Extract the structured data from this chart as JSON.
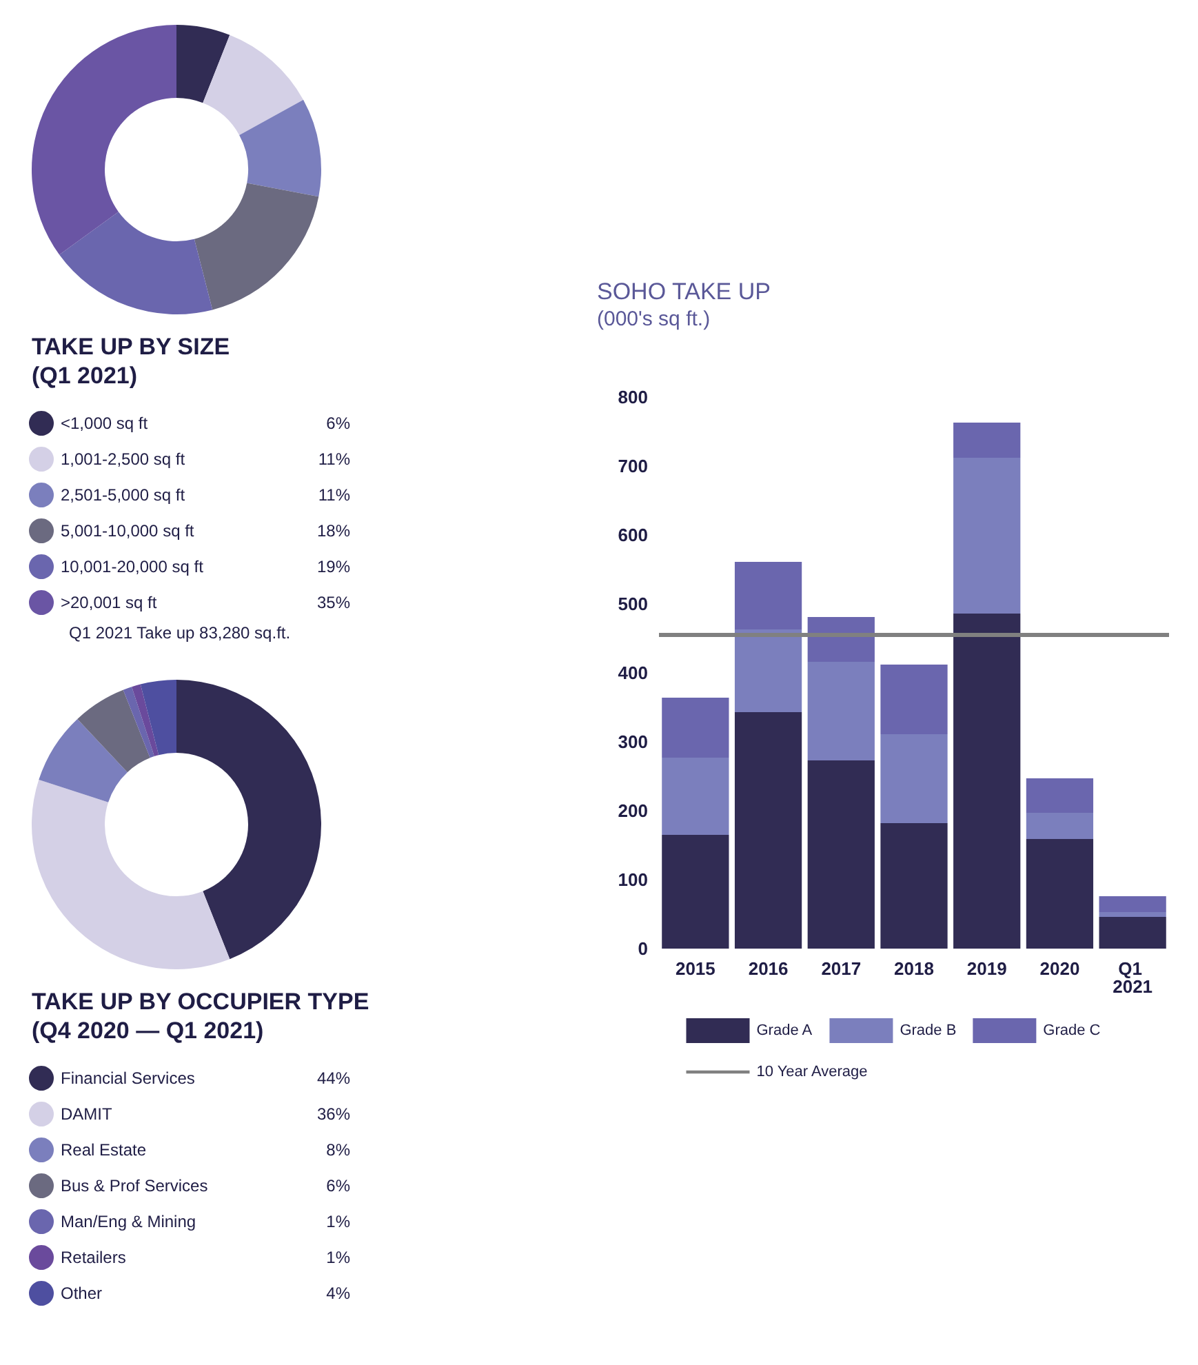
{
  "chart_data": [
    {
      "type": "donut",
      "title": "TAKE UP BY SIZE",
      "subtitle": "(Q1 2021)",
      "categories": [
        "<1,000 sq ft",
        "1,001-2,500 sq ft",
        "2,501-5,000 sq ft",
        "5,001-10,000 sq ft",
        "10,001-20,000 sq ft",
        ">20,001 sq ft"
      ],
      "values": [
        6,
        11,
        11,
        18,
        19,
        35
      ],
      "value_labels": [
        "6%",
        "11%",
        "11%",
        "18%",
        "19%",
        "35%"
      ],
      "colors": [
        "#312c54",
        "#d4d0e6",
        "#7b7fbd",
        "#6b6a80",
        "#6a66ae",
        "#6a55a4"
      ],
      "legend": "bottom",
      "annotations": [
        "Q1 2021 Take up 83,280 sq.ft."
      ]
    },
    {
      "type": "bar",
      "title": "SOHO TAKE UP",
      "subtitle": "(000's sq ft.)",
      "categories": [
        "2015",
        "2016",
        "2017",
        "2018",
        "2019",
        "2020",
        "Q1 2021"
      ],
      "stacked": true,
      "series": [
        {
          "name": "Grade A",
          "color": "#312c54",
          "values": [
            165,
            343,
            273,
            182,
            486,
            159,
            46
          ]
        },
        {
          "name": "Grade B",
          "color": "#7b7fbd",
          "values": [
            112,
            120,
            143,
            129,
            226,
            38,
            7
          ]
        },
        {
          "name": "Grade C",
          "color": "#6a66ae",
          "values": [
            87,
            98,
            65,
            101,
            51,
            50,
            23
          ]
        }
      ],
      "ylim": [
        0,
        800
      ],
      "yticks": [
        0,
        100,
        200,
        300,
        400,
        500,
        600,
        700,
        800
      ],
      "grid": false,
      "legend": "bottom",
      "ref_lines": [
        {
          "axis": "y",
          "value": 455,
          "label": "10 Year Average",
          "color": "#808080"
        }
      ]
    },
    {
      "type": "donut",
      "title": "TAKE UP BY OCCUPIER TYPE",
      "subtitle": "(Q4 2020 — Q1 2021)",
      "categories": [
        "Financial Services",
        "DAMIT",
        "Real Estate",
        "Bus & Prof Services",
        "Man/Eng & Mining",
        "Retailers",
        "Other"
      ],
      "values": [
        44,
        36,
        8,
        6,
        1,
        1,
        4
      ],
      "value_labels": [
        "44%",
        "36%",
        "8%",
        "6%",
        "1%",
        "1%",
        "4%"
      ],
      "colors": [
        "#312c54",
        "#d4d0e6",
        "#7b7fbd",
        "#6b6a80",
        "#6a66ae",
        "#6a4a9c",
        "#4e4fa0"
      ],
      "legend": "bottom"
    }
  ]
}
